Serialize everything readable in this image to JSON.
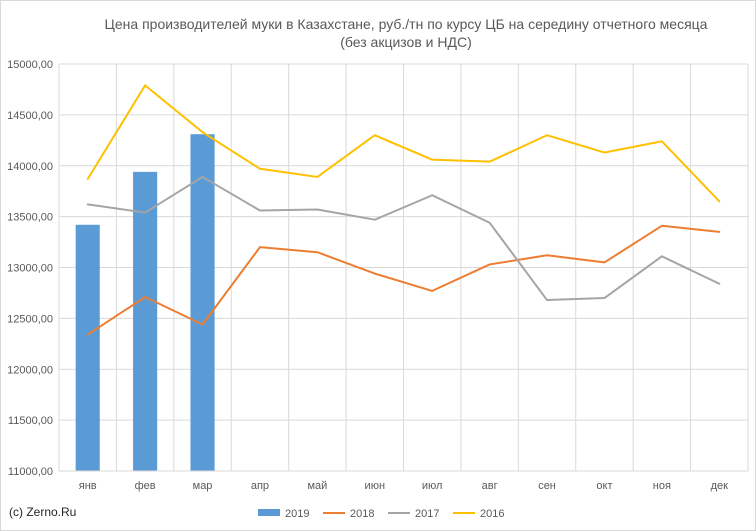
{
  "chart_data": {
    "type": "bar+line",
    "title_lines": [
      "Цена производителей муки в Казахстане, руб./тн по курсу ЦБ на  середину отчетного месяца",
      "(без акцизов и НДС)"
    ],
    "categories": [
      "янв",
      "фев",
      "мар",
      "апр",
      "май",
      "июн",
      "июл",
      "авг",
      "сен",
      "окт",
      "ноя",
      "дек"
    ],
    "ylim": [
      11000,
      15000
    ],
    "yticks": [
      "11000,00",
      "11500,00",
      "12000,00",
      "12500,00",
      "13000,00",
      "13500,00",
      "14000,00",
      "14500,00",
      "15000,00"
    ],
    "ytick_values": [
      11000,
      11500,
      12000,
      12500,
      13000,
      13500,
      14000,
      14500,
      15000
    ],
    "grid": true,
    "legend_position": "bottom",
    "series": [
      {
        "name": "2019",
        "kind": "bar",
        "color": "#5b9bd5",
        "values": [
          13420,
          13940,
          14310,
          null,
          null,
          null,
          null,
          null,
          null,
          null,
          null,
          null
        ]
      },
      {
        "name": "2018",
        "kind": "line",
        "color": "#ed7d31",
        "values": [
          12340,
          12710,
          12440,
          13200,
          13150,
          12940,
          12770,
          13030,
          13120,
          13050,
          13410,
          13350
        ]
      },
      {
        "name": "2017",
        "kind": "line",
        "color": "#a5a5a5",
        "values": [
          13620,
          13540,
          13890,
          13560,
          13570,
          13470,
          13710,
          13440,
          12680,
          12700,
          13110,
          12840
        ]
      },
      {
        "name": "2016",
        "kind": "line",
        "color": "#ffc000",
        "values": [
          13870,
          14790,
          14330,
          13970,
          13890,
          14300,
          14060,
          14040,
          14300,
          14130,
          14240,
          13650
        ]
      }
    ]
  },
  "source_text": "(c) Zerno.Ru"
}
